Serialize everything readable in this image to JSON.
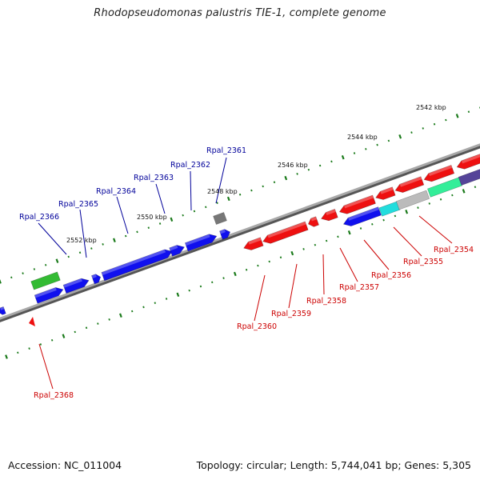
{
  "title": "Rhodopseudomonas palustris TIE-1, complete genome",
  "footer": {
    "accession": "Accession: NC_011004",
    "summary": "Topology: circular; Length: 5,744,041 bp; Genes: 5,305"
  },
  "colors": {
    "forward_gene": "#1010ee",
    "reverse_gene": "#ee1010",
    "label_forward": "#00009a",
    "label_reverse": "#cc0000",
    "tick": "#1a7a1a",
    "backbone": "#888888",
    "gray_feature": "#777777",
    "green_feature": "#33bb33",
    "cyan_feature": "#22dddd",
    "purple_feature": "#554499",
    "silver_feature": "#bbbbbb",
    "mint_feature": "#33ee99"
  },
  "kbp_labels": [
    "2542 kbp",
    "2544 kbp",
    "2546 kbp",
    "2548 kbp",
    "2550 kbp",
    "2552 kbp"
  ],
  "gene_labels_forward": [
    "Rpal_2361",
    "Rpal_2362",
    "Rpal_2363",
    "Rpal_2364",
    "Rpal_2365",
    "Rpal_2366"
  ],
  "gene_labels_reverse": [
    "Rpal_2354",
    "Rpal_2355",
    "Rpal_2356",
    "Rpal_2357",
    "Rpal_2358",
    "Rpal_2359",
    "Rpal_2360",
    "Rpal_2368"
  ]
}
